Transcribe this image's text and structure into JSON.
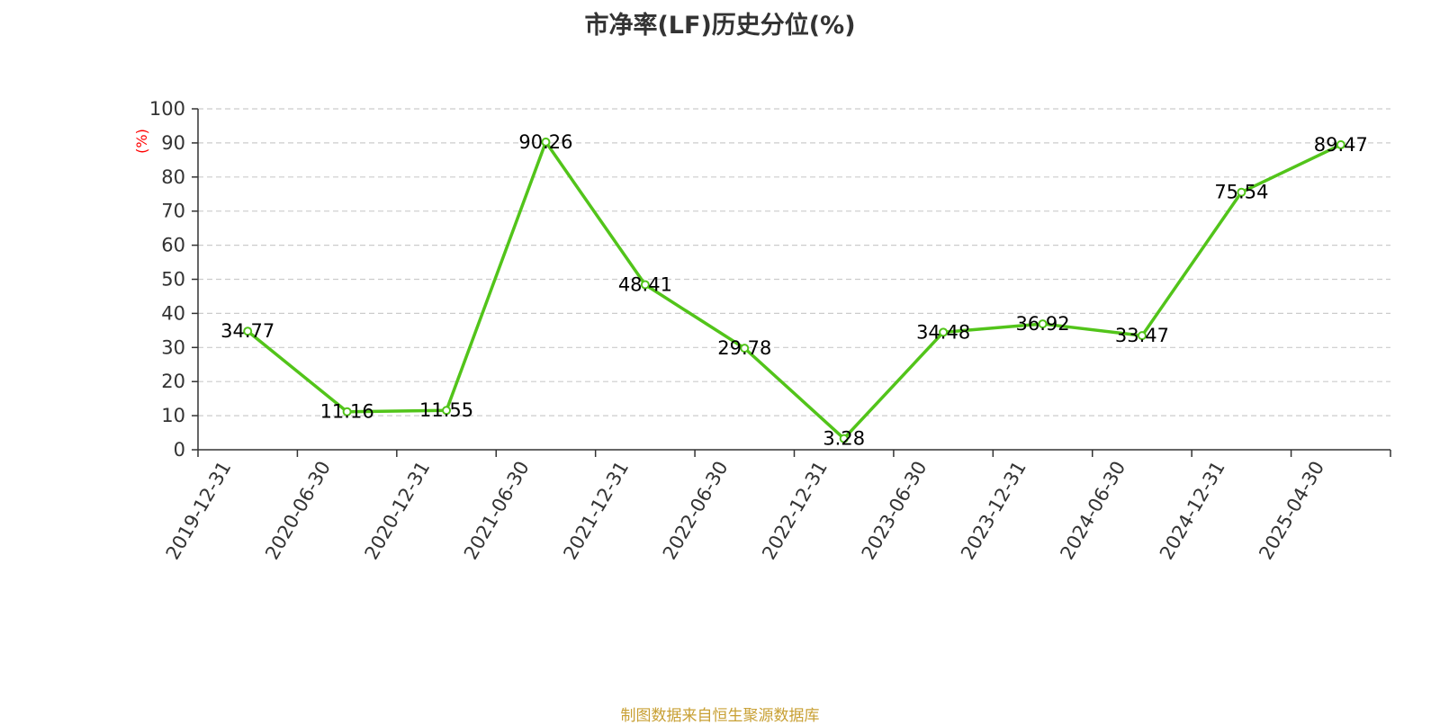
{
  "title": "市净率(LF)历史分位(%)",
  "source": "制图数据来自恒生聚源数据库",
  "colors": {
    "line": "#52c41a",
    "point_fill": "#ffffff",
    "axis": "#333333",
    "grid": "#cccccc",
    "tick_text": "#333333",
    "unit_text": "#ff0000",
    "label_text": "#000000",
    "title": "#333333",
    "source": "#c8a034"
  },
  "chart_data": {
    "type": "line",
    "title": "市净率(LF)历史分位(%)",
    "ylabel": "(%)",
    "xlabel": "",
    "ylim": [
      0,
      100
    ],
    "yticks": [
      0,
      10,
      20,
      30,
      40,
      50,
      60,
      70,
      80,
      90,
      100
    ],
    "grid": true,
    "categories": [
      "2019-12-31",
      "2020-06-30",
      "2020-12-31",
      "2021-06-30",
      "2021-12-31",
      "2022-06-30",
      "2022-12-31",
      "2023-06-30",
      "2023-12-31",
      "2024-06-30",
      "2024-12-31",
      "2025-04-30"
    ],
    "series": [
      {
        "values": [
          34.77,
          11.16,
          11.55,
          90.26,
          48.41,
          29.78,
          3.28,
          34.48,
          36.92,
          33.47,
          75.54,
          89.47
        ]
      }
    ]
  }
}
